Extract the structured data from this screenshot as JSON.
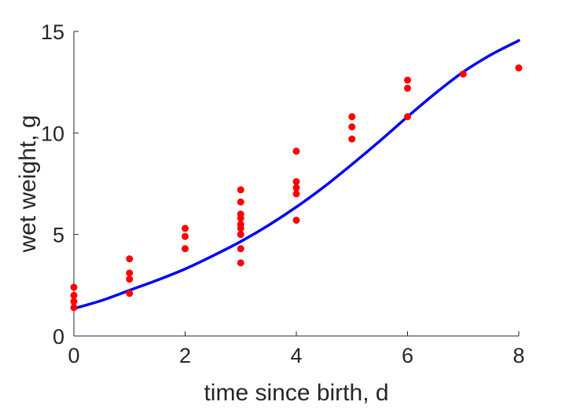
{
  "chart_data": {
    "type": "scatter",
    "xlabel": "time since birth, d",
    "ylabel": "wet weight, g",
    "xlim": [
      0,
      8
    ],
    "ylim": [
      0,
      15
    ],
    "xticks": [
      0,
      2,
      4,
      6,
      8
    ],
    "yticks": [
      0,
      5,
      10,
      15
    ],
    "grid": false,
    "series": [
      {
        "kind": "points",
        "color": "#ff0000",
        "points": [
          {
            "x": 0,
            "y": 2.4
          },
          {
            "x": 0,
            "y": 2.0
          },
          {
            "x": 0,
            "y": 1.7
          },
          {
            "x": 0,
            "y": 1.4
          },
          {
            "x": 1,
            "y": 3.8
          },
          {
            "x": 1,
            "y": 3.1
          },
          {
            "x": 1,
            "y": 2.8
          },
          {
            "x": 1,
            "y": 2.1
          },
          {
            "x": 2,
            "y": 5.3
          },
          {
            "x": 2,
            "y": 4.9
          },
          {
            "x": 2,
            "y": 4.3
          },
          {
            "x": 3,
            "y": 7.2
          },
          {
            "x": 3,
            "y": 6.6
          },
          {
            "x": 3,
            "y": 6.0
          },
          {
            "x": 3,
            "y": 5.8
          },
          {
            "x": 3,
            "y": 5.5
          },
          {
            "x": 3,
            "y": 5.3
          },
          {
            "x": 3,
            "y": 5.0
          },
          {
            "x": 3,
            "y": 4.3
          },
          {
            "x": 3,
            "y": 3.6
          },
          {
            "x": 4,
            "y": 9.1
          },
          {
            "x": 4,
            "y": 7.6
          },
          {
            "x": 4,
            "y": 7.3
          },
          {
            "x": 4,
            "y": 7.0
          },
          {
            "x": 4,
            "y": 5.7
          },
          {
            "x": 5,
            "y": 10.8
          },
          {
            "x": 5,
            "y": 10.3
          },
          {
            "x": 5,
            "y": 9.7
          },
          {
            "x": 6,
            "y": 12.6
          },
          {
            "x": 6,
            "y": 12.2
          },
          {
            "x": 6,
            "y": 10.8
          },
          {
            "x": 7,
            "y": 12.9
          },
          {
            "x": 8,
            "y": 13.2
          }
        ]
      },
      {
        "kind": "line",
        "color": "#0000ff",
        "x": [
          0,
          0.5,
          1,
          1.5,
          2,
          2.5,
          3,
          3.5,
          4,
          4.5,
          5,
          5.5,
          6,
          6.5,
          7,
          7.5,
          8
        ],
        "y": [
          1.35,
          1.75,
          2.25,
          2.75,
          3.3,
          3.95,
          4.65,
          5.45,
          6.35,
          7.35,
          8.45,
          9.6,
          10.8,
          11.95,
          13.0,
          13.85,
          14.55
        ]
      }
    ]
  }
}
